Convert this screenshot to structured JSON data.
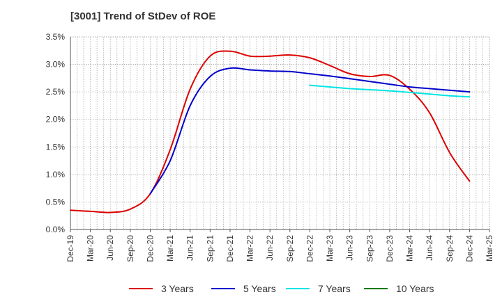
{
  "chart_data": {
    "type": "line",
    "title": "[3001]  Trend of StDev of ROE",
    "xlabel": "",
    "ylabel": "",
    "x_categories": [
      "Dec-19",
      "Mar-20",
      "Jun-20",
      "Sep-20",
      "Dec-20",
      "Mar-21",
      "Jun-21",
      "Sep-21",
      "Dec-21",
      "Mar-22",
      "Jun-22",
      "Sep-22",
      "Dec-22",
      "Mar-23",
      "Jun-23",
      "Sep-23",
      "Dec-23",
      "Mar-24",
      "Jun-24",
      "Sep-24",
      "Dec-24",
      "Mar-25"
    ],
    "y_ticks": [
      "0.0%",
      "0.5%",
      "1.0%",
      "1.5%",
      "2.0%",
      "2.5%",
      "3.0%",
      "3.5%"
    ],
    "ylim": [
      0,
      3.5
    ],
    "y_unit": "%",
    "grid": true,
    "legend_position": "bottom",
    "series": [
      {
        "name": "3 Years",
        "color": "#dd0000",
        "values": [
          0.35,
          0.33,
          0.31,
          0.37,
          0.65,
          1.45,
          2.55,
          3.15,
          3.24,
          3.15,
          3.15,
          3.17,
          3.12,
          2.98,
          2.83,
          2.78,
          2.8,
          2.55,
          2.12,
          1.4,
          0.88,
          null
        ]
      },
      {
        "name": "5 Years",
        "color": "#0000cc",
        "values": [
          null,
          null,
          null,
          null,
          0.65,
          1.25,
          2.25,
          2.78,
          2.93,
          2.9,
          2.88,
          2.87,
          2.83,
          2.79,
          2.74,
          2.69,
          2.64,
          2.59,
          2.56,
          2.53,
          2.5,
          null
        ]
      },
      {
        "name": "7 Years",
        "color": "#00e5e5",
        "values": [
          null,
          null,
          null,
          null,
          null,
          null,
          null,
          null,
          null,
          null,
          null,
          null,
          2.62,
          2.59,
          2.56,
          2.54,
          2.52,
          2.49,
          2.46,
          2.43,
          2.41,
          null
        ]
      },
      {
        "name": "10 Years",
        "color": "#007a00",
        "values": [
          null,
          null,
          null,
          null,
          null,
          null,
          null,
          null,
          null,
          null,
          null,
          null,
          null,
          null,
          null,
          null,
          null,
          null,
          null,
          null,
          null,
          null
        ]
      }
    ]
  }
}
